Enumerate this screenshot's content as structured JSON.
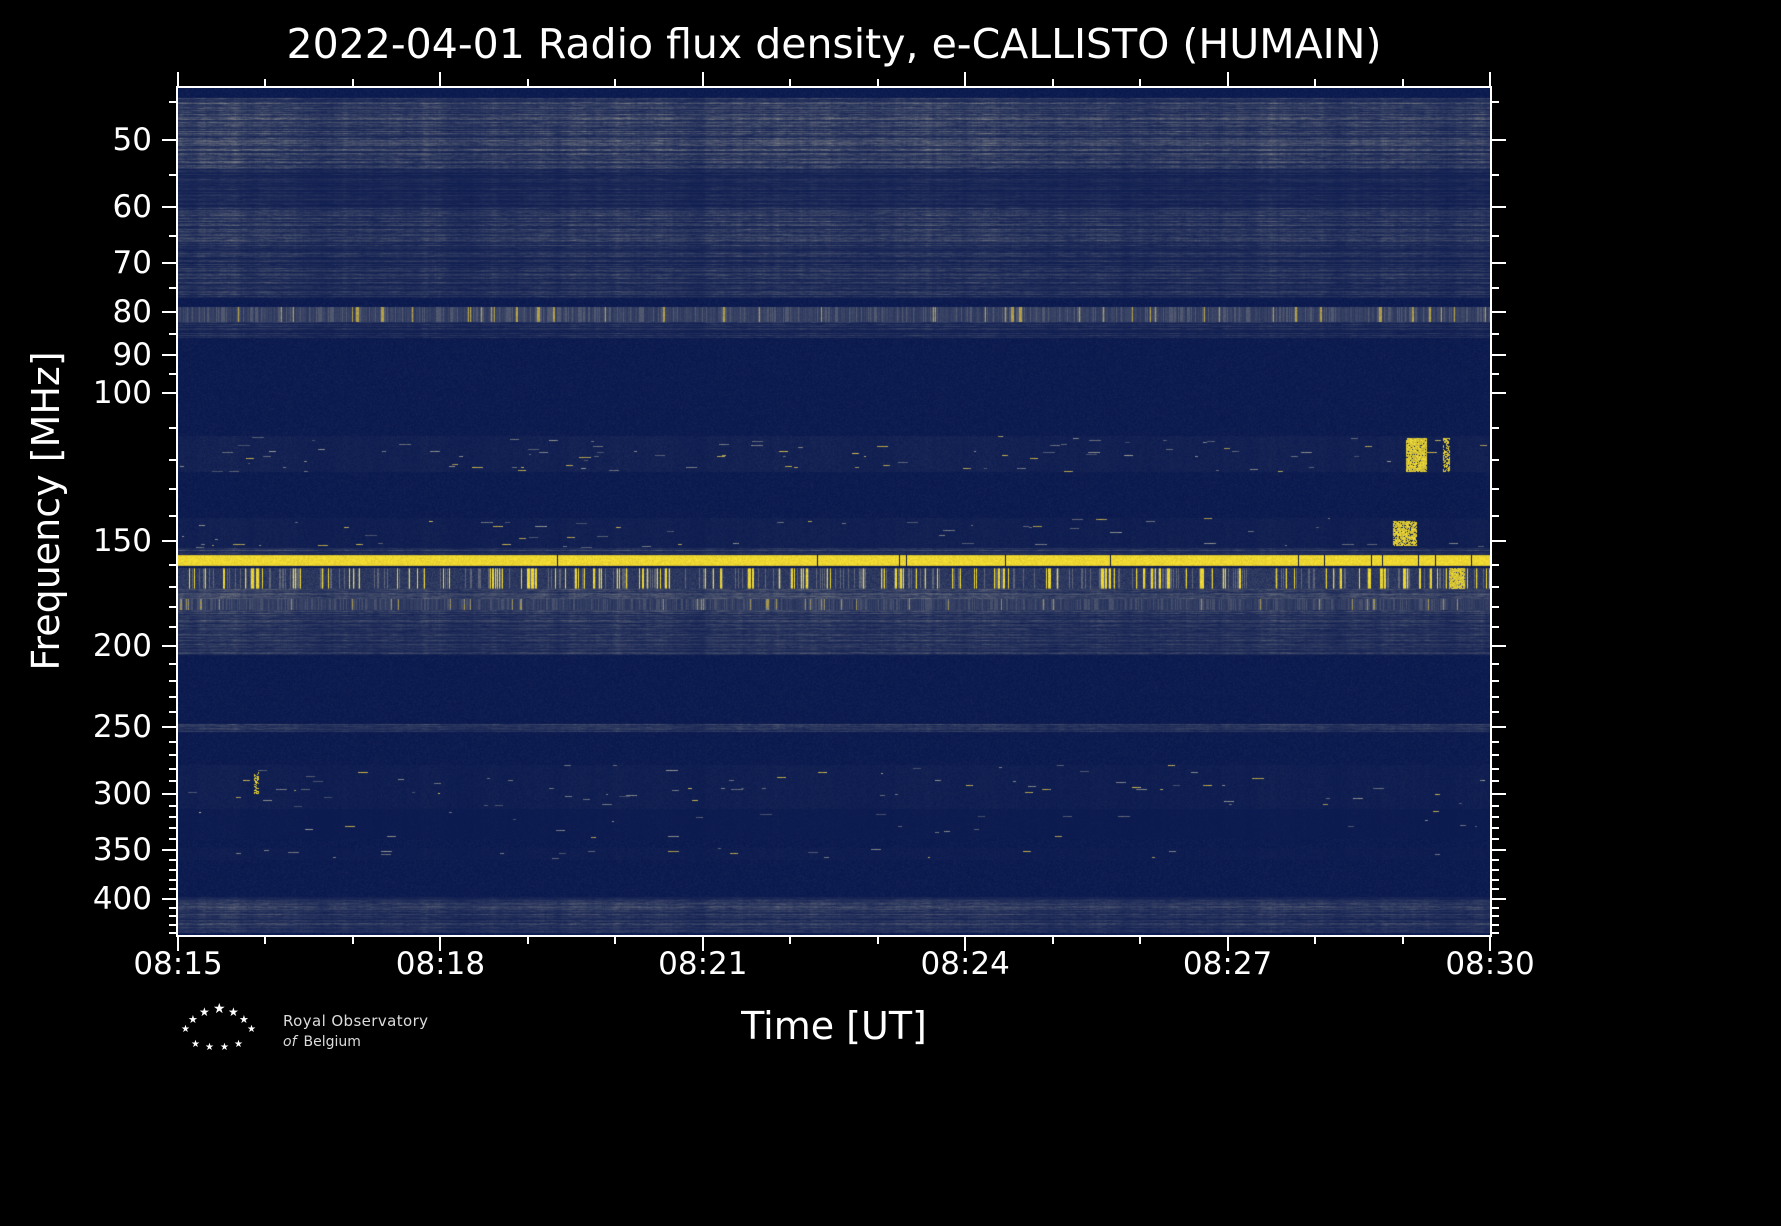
{
  "figure": {
    "title": "2022-04-01 Radio flux density, e-CALLISTO (HUMAIN)"
  },
  "footer": {
    "line1": "Royal Observatory",
    "line2_italic": "of",
    "line2": "Belgium"
  },
  "chart_data": {
    "type": "heatmap",
    "subtype": "radio-spectrogram",
    "title": "2022-04-01 Radio flux density, e-CALLISTO (HUMAIN)",
    "xlabel": "Time [UT]",
    "ylabel": "Frequency [MHz]",
    "x_ticks": [
      "08:15",
      "08:18",
      "08:21",
      "08:24",
      "08:27",
      "08:30"
    ],
    "x_minor_count": 15,
    "y_ticks": [
      50,
      60,
      70,
      80,
      90,
      100,
      150,
      200,
      250,
      300,
      350,
      400
    ],
    "y_minor_ticks": [
      45,
      55,
      65,
      75,
      85,
      95,
      110,
      120,
      130,
      140,
      160,
      170,
      180,
      190,
      210,
      220,
      230,
      240,
      260,
      270,
      280,
      290,
      310,
      320,
      330,
      340,
      360,
      370,
      380,
      390,
      410,
      420,
      430,
      440
    ],
    "y_scale": "log",
    "y_axis_inverted": true,
    "y_range_mhz": [
      43.3,
      442
    ],
    "x_range_time": [
      "08:15",
      "08:30"
    ],
    "legend": "none",
    "grid": false,
    "colors": {
      "background": "#000000",
      "base_blue": "#09184E",
      "noise_grey": "#CDC8AA",
      "signal_yellow": "#FCE432",
      "axis": "#FFFFFF"
    },
    "bands": [
      {
        "f_lo": 44.5,
        "f_hi": 54,
        "style": "noise",
        "intensity": 0.4
      },
      {
        "f_lo": 54,
        "f_hi": 60,
        "style": "noise",
        "intensity": 0.15
      },
      {
        "f_lo": 60,
        "f_hi": 66,
        "style": "noise",
        "intensity": 0.3
      },
      {
        "f_lo": 66,
        "f_hi": 77,
        "style": "noise",
        "intensity": 0.25
      },
      {
        "f_lo": 79,
        "f_hi": 82.3,
        "style": "speckle-line",
        "intensity": 0.8
      },
      {
        "f_lo": 82.3,
        "f_hi": 86,
        "style": "noise",
        "intensity": 0.18
      },
      {
        "f_lo": 112.5,
        "f_hi": 124,
        "style": "speckle",
        "intensity": 0.6
      },
      {
        "f_lo": 141,
        "f_hi": 153,
        "style": "speckle",
        "intensity": 0.5
      },
      {
        "f_lo": 153,
        "f_hi": 156,
        "style": "noise",
        "intensity": 0.3
      },
      {
        "f_lo": 156,
        "f_hi": 160.5,
        "style": "solid-yellow",
        "intensity": 1.0
      },
      {
        "f_lo": 161.5,
        "f_hi": 171,
        "style": "vertical-bars",
        "intensity": 0.95
      },
      {
        "f_lo": 171,
        "f_hi": 176,
        "style": "noise",
        "intensity": 0.45
      },
      {
        "f_lo": 176,
        "f_hi": 181.5,
        "style": "speckle-line",
        "intensity": 0.7
      },
      {
        "f_lo": 181.5,
        "f_hi": 205,
        "style": "noise",
        "intensity": 0.3
      },
      {
        "f_lo": 248,
        "f_hi": 253,
        "style": "noise",
        "intensity": 0.3
      },
      {
        "f_lo": 277,
        "f_hi": 313,
        "style": "speckle",
        "intensity": 0.45
      },
      {
        "f_lo": 313,
        "f_hi": 340,
        "style": "speckle",
        "intensity": 0.25
      },
      {
        "f_lo": 348,
        "f_hi": 360,
        "style": "speckle",
        "intensity": 0.35
      },
      {
        "f_lo": 398,
        "f_hi": 440,
        "style": "noise",
        "intensity": 0.28
      }
    ],
    "events": [
      {
        "t": 0.944,
        "width": 0.016,
        "f_lo": 113,
        "f_hi": 124,
        "intensity": 1.0
      },
      {
        "t": 0.967,
        "width": 0.005,
        "f_lo": 113,
        "f_hi": 124,
        "intensity": 0.6
      },
      {
        "t": 0.935,
        "width": 0.018,
        "f_lo": 142,
        "f_hi": 152,
        "intensity": 0.9
      },
      {
        "t": 0.975,
        "width": 0.012,
        "f_lo": 161.5,
        "f_hi": 171,
        "intensity": 1.0
      },
      {
        "t": 0.06,
        "width": 0.004,
        "f_lo": 283,
        "f_hi": 300,
        "intensity": 0.6
      }
    ]
  }
}
